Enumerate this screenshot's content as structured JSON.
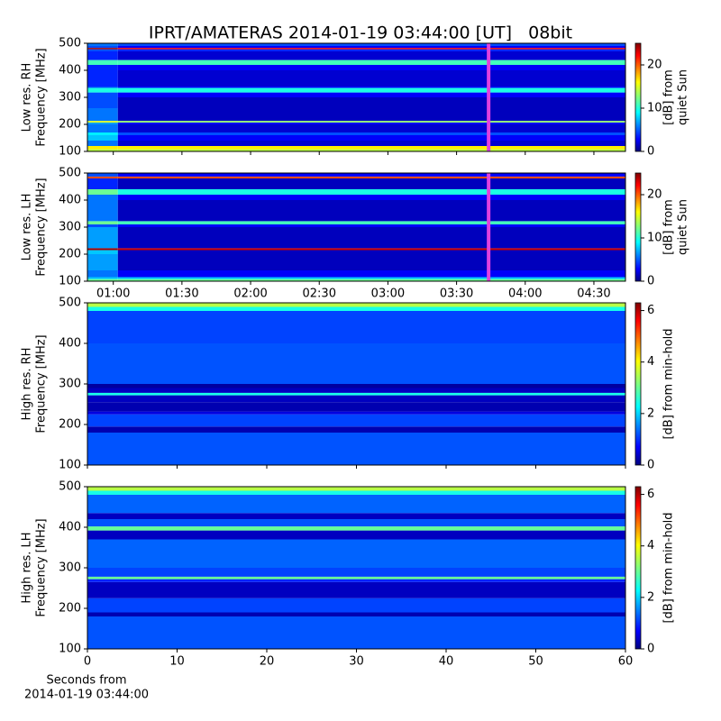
{
  "chart_data": [
    {
      "type": "spectrogram",
      "title": "IPRT/AMATERAS 2014-01-19 03:44:00 [UT]   08bit",
      "ylabel": [
        "Low res. RH",
        "Frequency [MHz]"
      ],
      "colorbar_label": [
        "[dB] from",
        "quiet Sun"
      ],
      "colormap": "jet",
      "clim": [
        0,
        25
      ],
      "cticks": [
        0,
        10,
        20
      ],
      "xlim": [
        48.7,
        283.8
      ],
      "ylim": [
        100,
        500
      ],
      "yticks": [
        100,
        200,
        300,
        400,
        500
      ],
      "x_bins": [
        48.7,
        62,
        283.8
      ],
      "y_bins": [
        100,
        108,
        120,
        140,
        160,
        170,
        200,
        207,
        213,
        260,
        300,
        318,
        335,
        340,
        400,
        420,
        438,
        470,
        478,
        483,
        490,
        500
      ],
      "values": [
        [
          14,
          14
        ],
        [
          16,
          16
        ],
        [
          6,
          2
        ],
        [
          8,
          3
        ],
        [
          9,
          5
        ],
        [
          6,
          2
        ],
        [
          7,
          3
        ],
        [
          15,
          13
        ],
        [
          6,
          1.5
        ],
        [
          5,
          1.5
        ],
        [
          5,
          3
        ],
        [
          10,
          10
        ],
        [
          5,
          3
        ],
        [
          4,
          2
        ],
        [
          4,
          3
        ],
        [
          11,
          11
        ],
        [
          4,
          2
        ],
        [
          5,
          4
        ],
        [
          24,
          22
        ],
        [
          5,
          3
        ],
        [
          6,
          5
        ]
      ],
      "markers": [
        {
          "x": 224,
          "color": "#e040e0"
        }
      ]
    },
    {
      "type": "spectrogram",
      "ylabel": [
        "Low res. LH",
        "Frequency [MHz]"
      ],
      "colorbar_label": [
        "[dB] from",
        "quiet Sun"
      ],
      "colormap": "jet",
      "clim": [
        0,
        25
      ],
      "cticks": [
        0,
        10,
        20
      ],
      "xlim": [
        48.7,
        283.8
      ],
      "ylim": [
        100,
        500
      ],
      "yticks": [
        100,
        200,
        300,
        400,
        500
      ],
      "xticks": [
        {
          "value": 60,
          "label": "01:00"
        },
        {
          "value": 90,
          "label": "01:30"
        },
        {
          "value": 120,
          "label": "02:00"
        },
        {
          "value": 150,
          "label": "02:30"
        },
        {
          "value": 180,
          "label": "03:00"
        },
        {
          "value": 210,
          "label": "03:30"
        },
        {
          "value": 240,
          "label": "04:00"
        },
        {
          "value": 270,
          "label": "04:30"
        }
      ],
      "x_bins": [
        48.7,
        62,
        283.8
      ],
      "y_bins": [
        100,
        108,
        115,
        140,
        200,
        215,
        222,
        300,
        310,
        322,
        400,
        420,
        440,
        480,
        487,
        500
      ],
      "values": [
        [
          12,
          12
        ],
        [
          8,
          8
        ],
        [
          6,
          3
        ],
        [
          7,
          1.5
        ],
        [
          8,
          1.5
        ],
        [
          24,
          23
        ],
        [
          7,
          1.5
        ],
        [
          5,
          3
        ],
        [
          12,
          11
        ],
        [
          6,
          1.5
        ],
        [
          6,
          3
        ],
        [
          12,
          10
        ],
        [
          4,
          1.5
        ],
        [
          20,
          20
        ],
        [
          5,
          3
        ]
      ],
      "markers": [
        {
          "x": 224,
          "color": "#e040e0"
        }
      ]
    },
    {
      "type": "spectrogram",
      "ylabel": [
        "High res. RH",
        "Frequency [MHz]"
      ],
      "colorbar_label": [
        "[dB] from min-hold"
      ],
      "colormap": "jet",
      "clim": [
        0,
        6.3
      ],
      "cticks": [
        0,
        2,
        4,
        6
      ],
      "xlim": [
        0,
        60
      ],
      "ylim": [
        100,
        500
      ],
      "yticks": [
        100,
        200,
        300,
        400,
        500
      ],
      "x_bins": [
        0,
        60
      ],
      "y_bins": [
        100,
        180,
        195,
        225,
        232,
        255,
        272,
        278,
        290,
        300,
        400,
        480,
        490,
        500
      ],
      "values": [
        [
          1.3
        ],
        [
          0.3
        ],
        [
          1.2
        ],
        [
          0.6
        ],
        [
          0.3
        ],
        [
          0.4
        ],
        [
          2.5
        ],
        [
          0.4
        ],
        [
          0.2
        ],
        [
          1.3
        ],
        [
          1.2
        ],
        [
          2.5
        ],
        [
          3.5
        ]
      ]
    },
    {
      "type": "spectrogram",
      "ylabel": [
        "High res. LH",
        "Frequency [MHz]"
      ],
      "colorbar_label": [
        "[dB] from min-hold"
      ],
      "xlabel": [
        "Seconds from",
        "2014-01-19 03:44:00"
      ],
      "colormap": "jet",
      "clim": [
        0,
        6.3
      ],
      "cticks": [
        0,
        2,
        4,
        6
      ],
      "xlim": [
        0,
        60
      ],
      "ylim": [
        100,
        500
      ],
      "yticks": [
        100,
        200,
        300,
        400,
        500
      ],
      "xticks": [
        0,
        10,
        20,
        30,
        40,
        50,
        60
      ],
      "x_bins": [
        0,
        60
      ],
      "y_bins": [
        100,
        180,
        190,
        225,
        265,
        272,
        278,
        300,
        370,
        392,
        402,
        420,
        435,
        480,
        490,
        500
      ],
      "values": [
        [
          1.3
        ],
        [
          0.3
        ],
        [
          1.2
        ],
        [
          0.4
        ],
        [
          1.0
        ],
        [
          3.0
        ],
        [
          1.2
        ],
        [
          1.4
        ],
        [
          0.4
        ],
        [
          3
        ],
        [
          1.3
        ],
        [
          0.4
        ],
        [
          1.4
        ],
        [
          2.5
        ],
        [
          3.5
        ]
      ]
    }
  ]
}
